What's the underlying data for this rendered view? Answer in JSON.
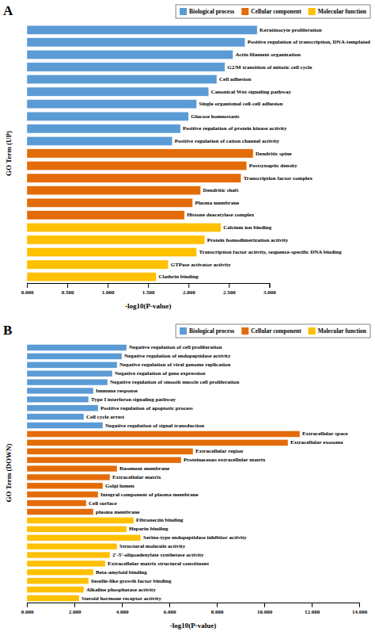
{
  "chart_data": [
    {
      "type": "bar",
      "orientation": "horizontal",
      "title": "A",
      "xlabel": "-log10(P-value)",
      "ylabel": "GO Term (UP)",
      "categories": [
        "Keratinocyte proliferation",
        "Positive regulation of transcription, DNA-templated",
        "Actin filament organization",
        "G2/M transition of mitotic cell cycle",
        "Cell adhesion",
        "Canonical Wnt signaling pathway",
        "Single organismal cell-cell adhesion",
        "Glucose homeostasis",
        "Positive regulation of protein kinase activity",
        "Positive regulation of cation channel activity",
        "Dendritic spine",
        "Postsynaptic density",
        "Transcription factor complex",
        "Dendritic shaft",
        "Plasma membrane",
        "Histone deacetylase complex",
        "Calcium ion binding",
        "Protein homodimerization activity",
        "Transcription factor activity, sequence-specific DNA binding",
        "GTPase activator activity",
        "Clathrin binding"
      ],
      "series": [
        {
          "name": "Biological process",
          "color": "#5B9BD5",
          "values": [
            2.85,
            2.7,
            2.55,
            2.45,
            2.35,
            2.25,
            2.1,
            2.0,
            1.9,
            1.8,
            null,
            null,
            null,
            null,
            null,
            null,
            null,
            null,
            null,
            null,
            null
          ]
        },
        {
          "name": "Cellular component",
          "color": "#E36C09",
          "values": [
            null,
            null,
            null,
            null,
            null,
            null,
            null,
            null,
            null,
            null,
            2.8,
            2.72,
            2.65,
            2.15,
            2.05,
            1.95,
            null,
            null,
            null,
            null,
            null
          ]
        },
        {
          "name": "Molecular function",
          "color": "#FFC000",
          "values": [
            null,
            null,
            null,
            null,
            null,
            null,
            null,
            null,
            null,
            null,
            null,
            null,
            null,
            null,
            null,
            null,
            2.4,
            2.2,
            2.1,
            1.75,
            1.6
          ]
        }
      ],
      "xlim": [
        0,
        3.0
      ],
      "xticks": [
        {
          "value": 0.0,
          "label": "0.000"
        },
        {
          "value": 0.5,
          "label": "0.500"
        },
        {
          "value": 1.0,
          "label": "1.000"
        },
        {
          "value": 1.5,
          "label": "1.500"
        },
        {
          "value": 2.0,
          "label": "2.000"
        },
        {
          "value": 2.5,
          "label": "2.500"
        },
        {
          "value": 3.0,
          "label": "3.000"
        }
      ],
      "tick_labels": "x",
      "legend": "upper right"
    },
    {
      "type": "bar",
      "orientation": "horizontal",
      "title": "B",
      "xlabel": "-log10(P-value)",
      "ylabel": "GO Term (DOWN)",
      "categories": [
        "Negative regulation of cell proliferation",
        "Negative regulation of endopeptidase activity",
        "Negative regulation of viral genome replication",
        "Negative regulation of gene expression",
        "Negative regulation of smooth muscle cell proliferation",
        "Immune response",
        "Type I interferon signaling pathway",
        "Positive regulation of apoptotic process",
        "Cell cycle arrest",
        "Negative regulation of signal transduction",
        "Extracellular space",
        "Extracellular exosome",
        "Extracellular region",
        "Proteinaceous extracellular matrix",
        "Basement membrane",
        "Extracellular matrix",
        "Golgi lumen",
        "Integral component of plasma membrane",
        "Cell surface",
        "plasma membrane",
        "Fibronectin binding",
        "Heparin binding",
        "Serine-type endopeptidase inhibitor activity",
        "Structural molecule activity",
        "2'-5'-oligoadenylate synthetase activity",
        "Extracellular matrix structural constituent",
        "Beta-amyloid binding",
        "Insulin-like growth factor binding",
        "Alkaline phosphatase activity",
        "Steroid hormone receptor activity"
      ],
      "series": [
        {
          "name": "Biological process",
          "color": "#5B9BD5",
          "values": [
            4.2,
            4.0,
            3.8,
            3.6,
            3.4,
            2.8,
            2.6,
            3.0,
            2.4,
            3.2,
            null,
            null,
            null,
            null,
            null,
            null,
            null,
            null,
            null,
            null,
            null,
            null,
            null,
            null,
            null,
            null,
            null,
            null,
            null,
            null
          ]
        },
        {
          "name": "Cellular component",
          "color": "#E36C09",
          "values": [
            null,
            null,
            null,
            null,
            null,
            null,
            null,
            null,
            null,
            null,
            11.5,
            11.0,
            7.0,
            6.5,
            3.8,
            3.5,
            3.2,
            3.0,
            2.5,
            2.8,
            null,
            null,
            null,
            null,
            null,
            null,
            null,
            null,
            null,
            null
          ]
        },
        {
          "name": "Molecular function",
          "color": "#FFC000",
          "values": [
            null,
            null,
            null,
            null,
            null,
            null,
            null,
            null,
            null,
            null,
            null,
            null,
            null,
            null,
            null,
            null,
            null,
            null,
            null,
            null,
            4.5,
            4.2,
            4.8,
            3.8,
            3.5,
            3.3,
            2.8,
            2.6,
            2.4,
            2.2
          ]
        }
      ],
      "xlim": [
        0,
        14.0
      ],
      "xticks": [
        {
          "value": 0.0,
          "label": "0.000"
        },
        {
          "value": 2.0,
          "label": "2.000"
        },
        {
          "value": 4.0,
          "label": "4.000"
        },
        {
          "value": 6.0,
          "label": "6.000"
        },
        {
          "value": 8.0,
          "label": "8.000"
        },
        {
          "value": 10.0,
          "label": "10.000"
        },
        {
          "value": 12.0,
          "label": "12.000"
        },
        {
          "value": 14.0,
          "label": "14.000"
        }
      ],
      "tick_labels": "x",
      "legend": "upper right"
    }
  ]
}
